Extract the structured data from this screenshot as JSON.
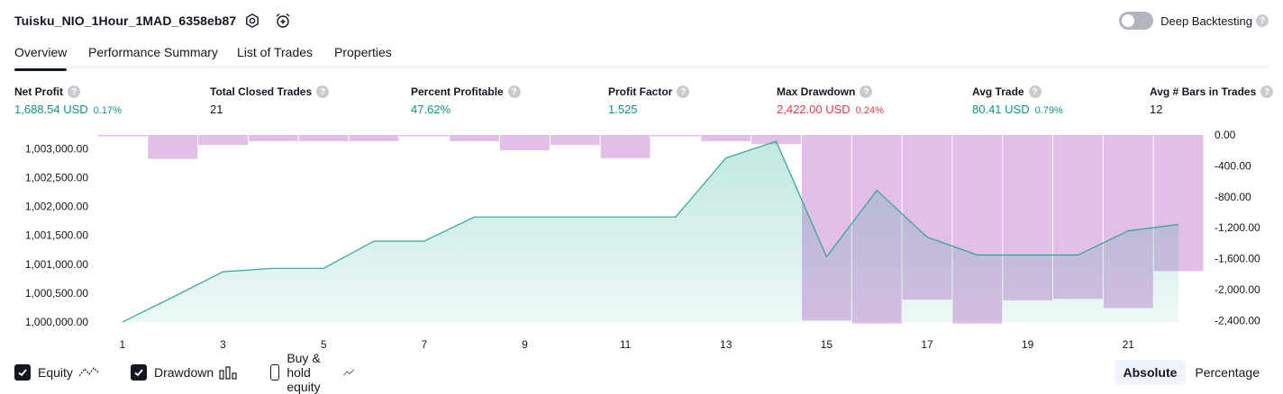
{
  "header": {
    "title": "Tuisku_NIO_1Hour_1MAD_6358eb87",
    "settings_icon": "gear-icon",
    "alert_icon": "alarm-clock-plus-icon",
    "deep_backtesting_label": "Deep Backtesting",
    "deep_backtesting_enabled": false,
    "help_glyph": "?"
  },
  "tabs": [
    {
      "label": "Overview",
      "active": true
    },
    {
      "label": "Performance Summary",
      "active": false
    },
    {
      "label": "List of Trades",
      "active": false
    },
    {
      "label": "Properties",
      "active": false
    }
  ],
  "stats": [
    {
      "label": "Net Profit",
      "value": "1,688.54 USD",
      "pct": "0.17%",
      "color": "#089981"
    },
    {
      "label": "Total Closed Trades",
      "value": "21",
      "pct": "",
      "color": "#131722"
    },
    {
      "label": "Percent Profitable",
      "value": "47.62%",
      "pct": "",
      "color": "#089981"
    },
    {
      "label": "Profit Factor",
      "value": "1.525",
      "pct": "",
      "color": "#089981"
    },
    {
      "label": "Max Drawdown",
      "value": "2,422.00 USD",
      "pct": "0.24%",
      "color": "#f23645"
    },
    {
      "label": "Avg Trade",
      "value": "80.41 USD",
      "pct": "0.79%",
      "color": "#089981"
    },
    {
      "label": "Avg # Bars in Trades",
      "value": "12",
      "pct": "",
      "color": "#131722"
    }
  ],
  "chart_data": {
    "type": "area",
    "x": [
      1,
      2,
      3,
      4,
      5,
      6,
      7,
      8,
      9,
      10,
      11,
      12,
      13,
      14,
      15,
      16,
      17,
      18,
      19,
      20,
      21,
      22
    ],
    "x_tick_labels": [
      "1",
      "3",
      "5",
      "7",
      "9",
      "11",
      "13",
      "15",
      "17",
      "19",
      "21"
    ],
    "series": [
      {
        "name": "Equity",
        "type": "area",
        "axis": "left",
        "color": "#22ab94",
        "values": [
          1000000,
          1000430,
          1000870,
          1000930,
          1000930,
          1001400,
          1001400,
          1001820,
          1001820,
          1001820,
          1001820,
          1001820,
          1002840,
          1003130,
          1001130,
          1002280,
          1001470,
          1001160,
          1001160,
          1001160,
          1001580,
          1001690
        ]
      },
      {
        "name": "Drawdown",
        "type": "bar",
        "axis": "right",
        "color": "#ce93d8",
        "values": [
          0,
          -310,
          -130,
          -80,
          -80,
          -80,
          0,
          -80,
          -200,
          -130,
          -300,
          0,
          -80,
          -120,
          -2400,
          -2440,
          -2130,
          -2440,
          -2140,
          -2120,
          -2240,
          -1760
        ]
      }
    ],
    "left_axis": {
      "ticks": [
        "1,000,000.00",
        "1,000,500.00",
        "1,001,000.00",
        "1,001,500.00",
        "1,002,000.00",
        "1,002,500.00",
        "1,003,000.00"
      ],
      "range": [
        1000000,
        1003240
      ]
    },
    "right_axis": {
      "ticks": [
        "0.00",
        "-400.00",
        "-800.00",
        "-1,200.00",
        "-1,600.00",
        "-2,000.00",
        "-2,400.00"
      ],
      "range": [
        -2420,
        0
      ]
    },
    "grid": false
  },
  "legend": [
    {
      "label": "Equity",
      "checked": true,
      "icon": "equity-line-icon"
    },
    {
      "label": "Drawdown",
      "checked": true,
      "icon": "drawdown-bars-icon"
    },
    {
      "label": "Buy & hold equity",
      "checked": false,
      "icon": "buy-hold-line-icon"
    }
  ],
  "view_mode": {
    "options": [
      "Absolute",
      "Percentage"
    ],
    "selected": "Absolute"
  }
}
